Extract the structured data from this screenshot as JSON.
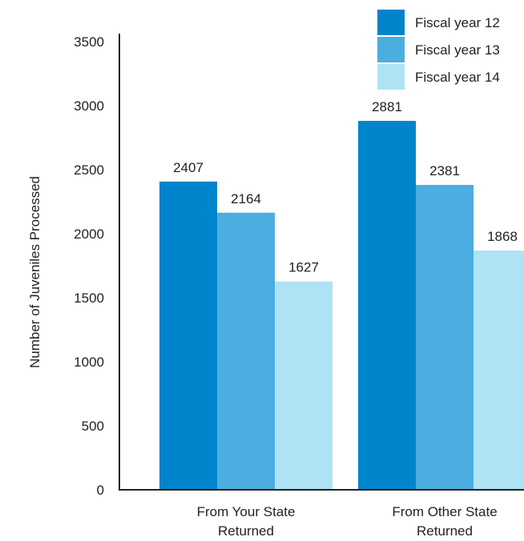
{
  "chart_data": {
    "type": "bar",
    "ylabel": "Number of Juveniles Processed",
    "ylim": [
      0,
      3500
    ],
    "yticks": [
      0,
      500,
      1000,
      1500,
      2000,
      2500,
      3000,
      3500
    ],
    "categories": [
      [
        "From Your State",
        "Returned"
      ],
      [
        "From Other State",
        "Returned"
      ]
    ],
    "series": [
      {
        "name": "Fiscal year 12",
        "color": "#0085cc",
        "values": [
          2407,
          2881
        ]
      },
      {
        "name": "Fiscal year 13",
        "color": "#4bade0",
        "values": [
          2164,
          2381
        ]
      },
      {
        "name": "Fiscal year 14",
        "color": "#ade3f5",
        "values": [
          1627,
          1868
        ]
      }
    ],
    "legend_position": "top-right",
    "grid": false
  }
}
